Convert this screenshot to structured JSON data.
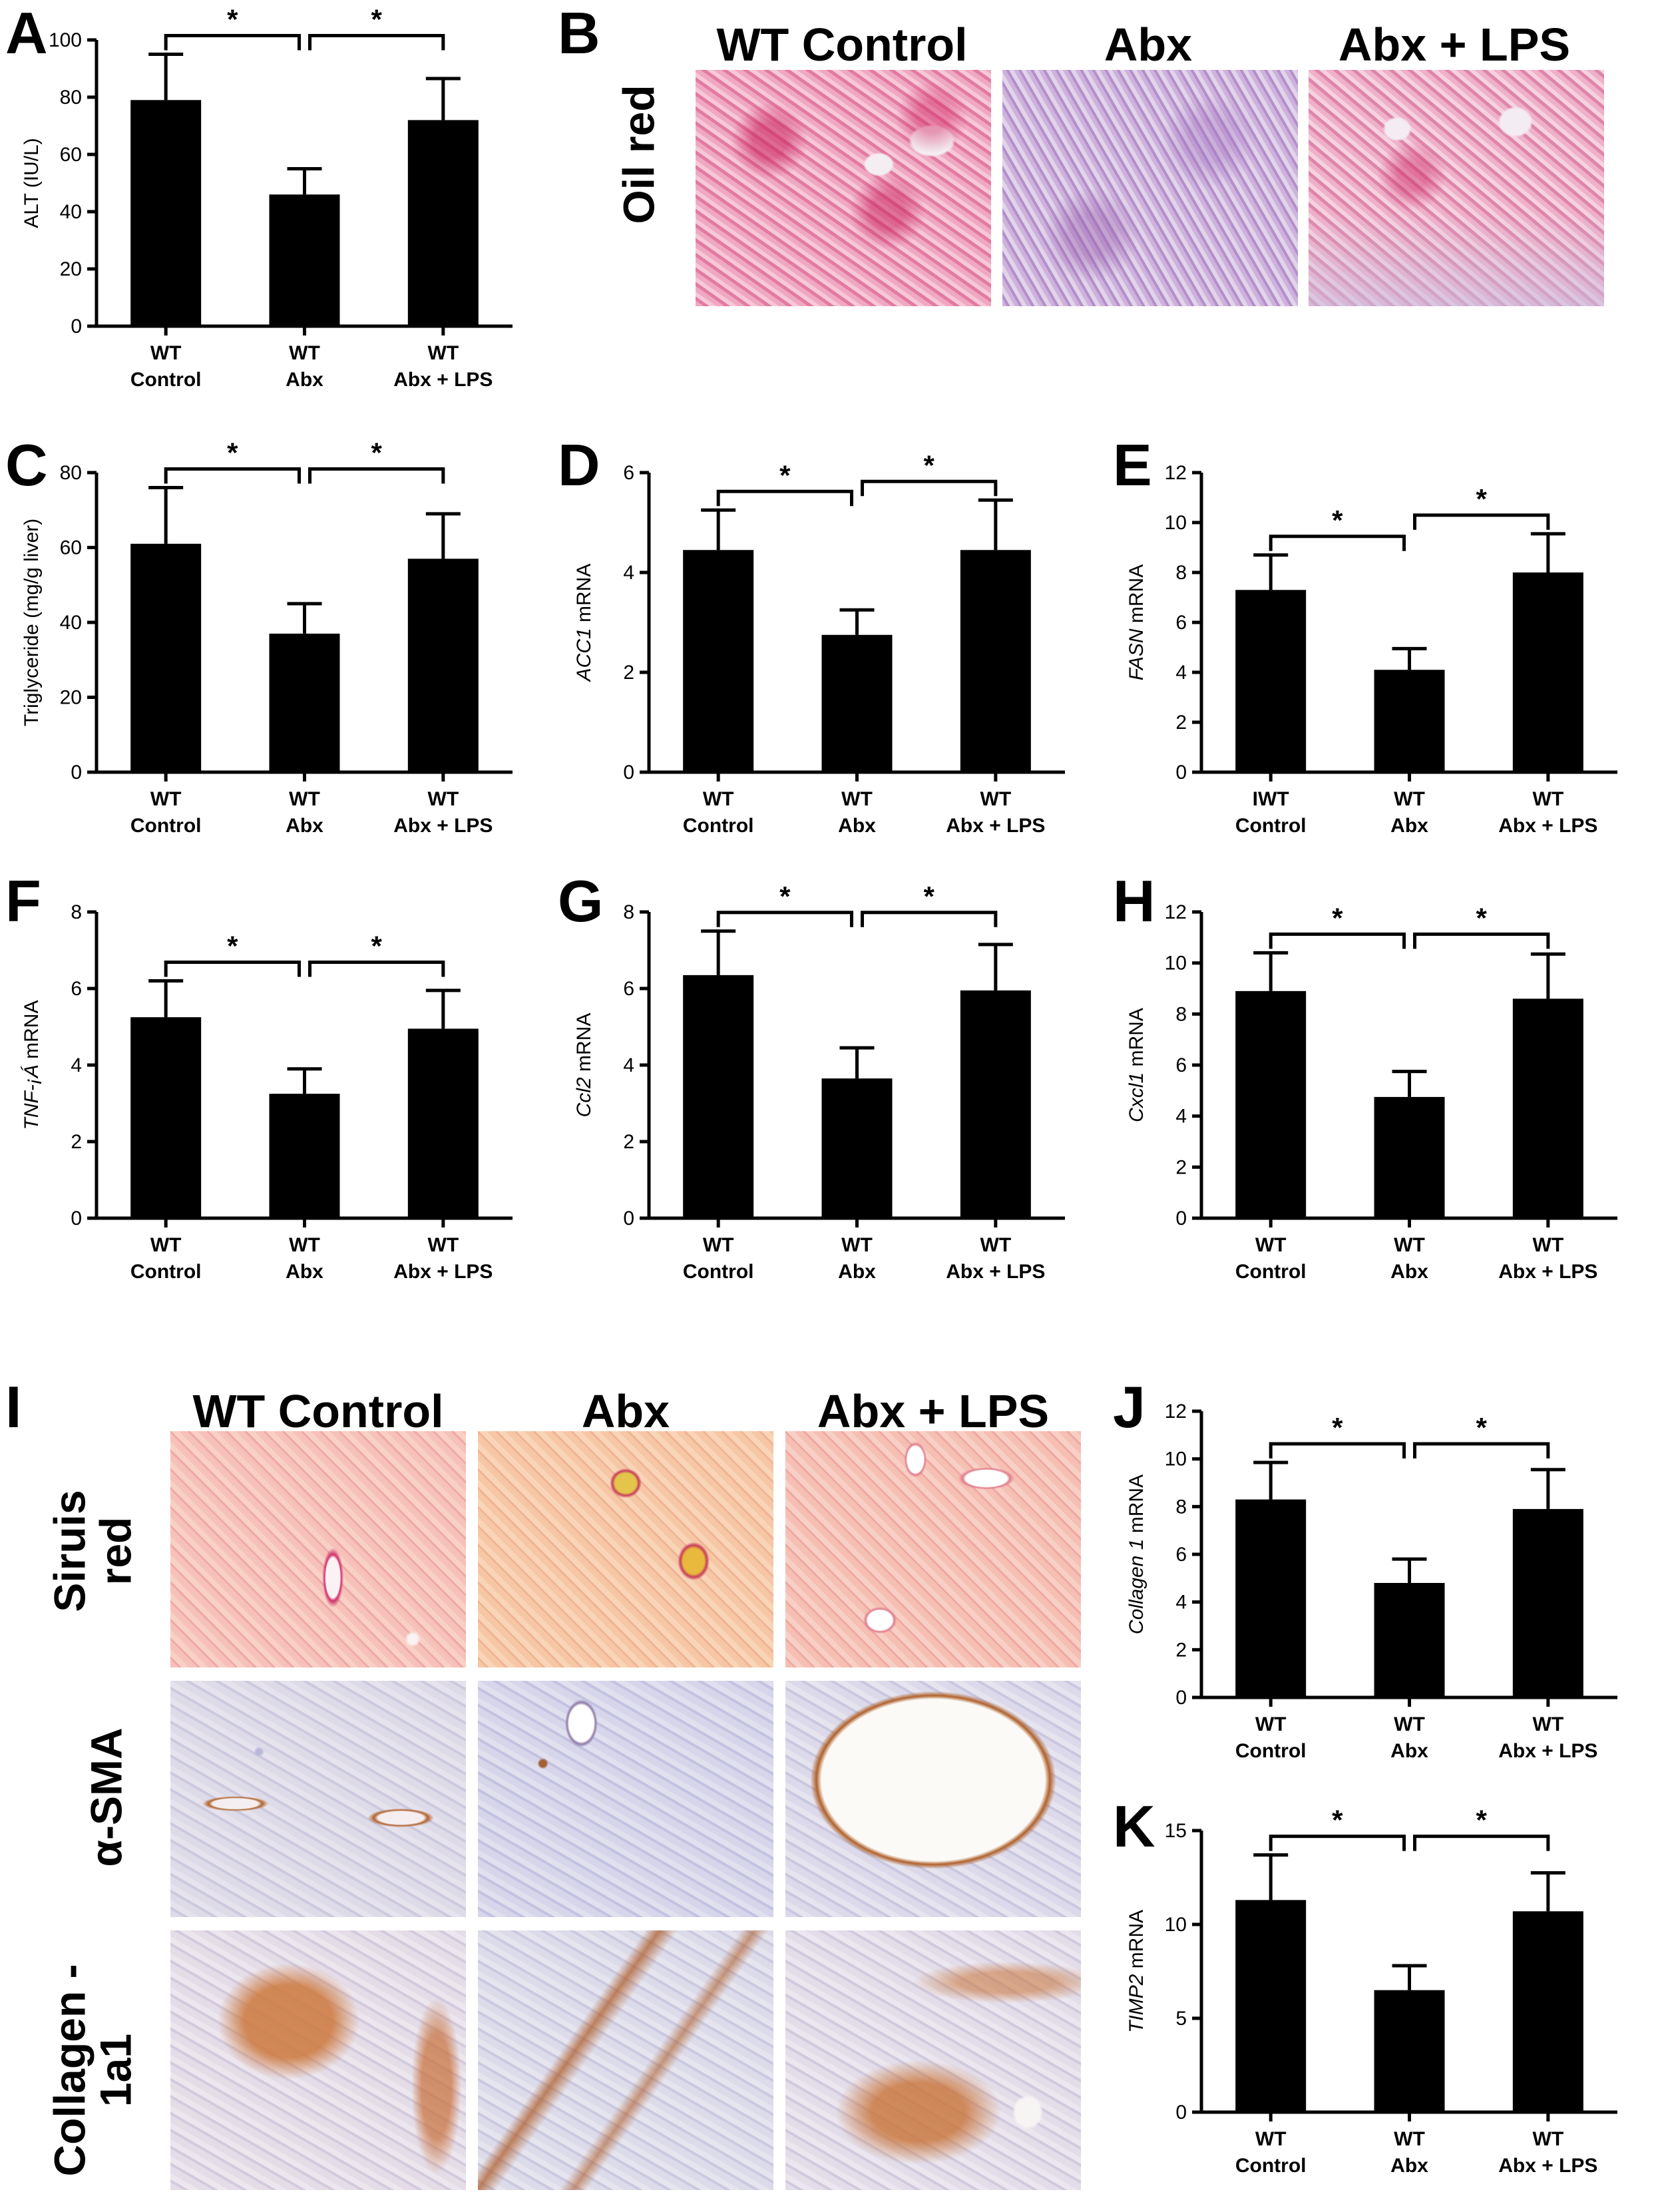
{
  "panels": {
    "A": "A",
    "B": "B",
    "C": "C",
    "D": "D",
    "E": "E",
    "F": "F",
    "G": "G",
    "H": "H",
    "I": "I",
    "J": "J",
    "K": "K"
  },
  "histology_B": {
    "columns": [
      "WT Control",
      "Abx",
      "Abx + LPS"
    ],
    "row_label": "Oil red"
  },
  "histology_I": {
    "columns": [
      "WT Control",
      "Abx",
      "Abx + LPS"
    ],
    "row_labels": [
      [
        "Siruis",
        "red"
      ],
      [
        "α-SMA"
      ],
      [
        "Collagen -",
        "1a1"
      ]
    ]
  },
  "colors": {
    "bar": "#000000",
    "oil_red": "#e8a3bd",
    "oil_red_abx": "#c2a8d6",
    "sirius": "#f2b3a6",
    "ihc_bg": "#d8d8e6",
    "ihc_brown": "#b06a2c"
  },
  "chart_data": [
    {
      "id": "A",
      "type": "bar",
      "ylabel": "ALT (IU/L)",
      "ylabel_italic": "",
      "ylim": [
        0,
        100
      ],
      "yticks": [
        "0",
        "20",
        "40",
        "60",
        "80",
        "100"
      ],
      "categories": [
        [
          "WT",
          "Control"
        ],
        [
          "WT",
          "Abx"
        ],
        [
          "WT",
          "Abx + LPS"
        ]
      ],
      "values": [
        79,
        46,
        72
      ],
      "errors": [
        16,
        9,
        14.5
      ],
      "significance": [
        "*",
        "*"
      ]
    },
    {
      "id": "C",
      "type": "bar",
      "ylabel": "Triglyceride (mg/g liver)",
      "ylabel_italic": "",
      "ylim": [
        0,
        80
      ],
      "yticks": [
        "0",
        "20",
        "40",
        "60",
        "80"
      ],
      "categories": [
        [
          "WT",
          "Control"
        ],
        [
          "WT",
          "Abx"
        ],
        [
          "WT",
          "Abx + LPS"
        ]
      ],
      "values": [
        61,
        37,
        57
      ],
      "errors": [
        15,
        8,
        12
      ],
      "significance": [
        "*",
        "*"
      ]
    },
    {
      "id": "D",
      "type": "bar",
      "ylabel": "mRNA",
      "ylabel_italic": "ACC1",
      "ylim": [
        0,
        6
      ],
      "yticks": [
        "0",
        "2",
        "4",
        "6"
      ],
      "categories": [
        [
          "WT",
          "Control"
        ],
        [
          "WT",
          "Abx"
        ],
        [
          "WT",
          "Abx + LPS"
        ]
      ],
      "values": [
        4.45,
        2.75,
        4.45
      ],
      "errors": [
        0.8,
        0.5,
        1.0
      ],
      "significance": [
        "*",
        "*"
      ]
    },
    {
      "id": "E",
      "type": "bar",
      "ylabel": "mRNA",
      "ylabel_italic": "FASN",
      "ylim": [
        0,
        12
      ],
      "yticks": [
        "0",
        "2",
        "4",
        "6",
        "8",
        "10",
        "12"
      ],
      "categories": [
        [
          "IWT",
          "Control"
        ],
        [
          "WT",
          "Abx"
        ],
        [
          "WT",
          "Abx + LPS"
        ]
      ],
      "values": [
        7.3,
        4.1,
        8.0
      ],
      "errors": [
        1.4,
        0.85,
        1.55
      ],
      "significance": [
        "*",
        "*"
      ]
    },
    {
      "id": "F",
      "type": "bar",
      "ylabel": "mRNA",
      "ylabel_italic": "TNF-¡Á",
      "ylim": [
        0,
        8
      ],
      "yticks": [
        "0",
        "2",
        "4",
        "6",
        "8"
      ],
      "categories": [
        [
          "WT",
          "Control"
        ],
        [
          "WT",
          "Abx"
        ],
        [
          "WT",
          "Abx + LPS"
        ]
      ],
      "values": [
        5.25,
        3.25,
        4.95
      ],
      "errors": [
        0.95,
        0.65,
        1.0
      ],
      "significance": [
        "*",
        "*"
      ]
    },
    {
      "id": "G",
      "type": "bar",
      "ylabel": "mRNA",
      "ylabel_italic": "Ccl2",
      "ylim": [
        0,
        8
      ],
      "yticks": [
        "0",
        "2",
        "4",
        "6",
        "8"
      ],
      "categories": [
        [
          "WT",
          "Control"
        ],
        [
          "WT",
          "Abx"
        ],
        [
          "WT",
          "Abx + LPS"
        ]
      ],
      "values": [
        6.35,
        3.65,
        5.95
      ],
      "errors": [
        1.15,
        0.8,
        1.2
      ],
      "significance": [
        "*",
        "*"
      ]
    },
    {
      "id": "H",
      "type": "bar",
      "ylabel": "mRNA",
      "ylabel_italic": "Cxcl1",
      "ylim": [
        0,
        12
      ],
      "yticks": [
        "0",
        "2",
        "4",
        "6",
        "8",
        "10",
        "12"
      ],
      "categories": [
        [
          "WT",
          "Control"
        ],
        [
          "WT",
          "Abx"
        ],
        [
          "WT",
          "Abx + LPS"
        ]
      ],
      "values": [
        8.9,
        4.75,
        8.6
      ],
      "errors": [
        1.5,
        1.0,
        1.75
      ],
      "significance": [
        "*",
        "*"
      ]
    },
    {
      "id": "J",
      "type": "bar",
      "ylabel": "mRNA",
      "ylabel_italic": "Collagen 1",
      "ylim": [
        0,
        12
      ],
      "yticks": [
        "0",
        "2",
        "4",
        "6",
        "8",
        "10",
        "12"
      ],
      "categories": [
        [
          "WT",
          "Control"
        ],
        [
          "WT",
          "Abx"
        ],
        [
          "WT",
          "Abx + LPS"
        ]
      ],
      "values": [
        8.3,
        4.8,
        7.9
      ],
      "errors": [
        1.55,
        1.0,
        1.65
      ],
      "significance": [
        "*",
        "*"
      ]
    },
    {
      "id": "K",
      "type": "bar",
      "ylabel": "mRNA",
      "ylabel_italic": "TIMP2",
      "ylim": [
        0,
        15
      ],
      "yticks": [
        "0",
        "5",
        "10",
        "15"
      ],
      "categories": [
        [
          "WT",
          "Control"
        ],
        [
          "WT",
          "Abx"
        ],
        [
          "WT",
          "Abx + LPS"
        ]
      ],
      "values": [
        11.3,
        6.5,
        10.7
      ],
      "errors": [
        2.4,
        1.3,
        2.05
      ],
      "significance": [
        "*",
        "*"
      ]
    }
  ]
}
